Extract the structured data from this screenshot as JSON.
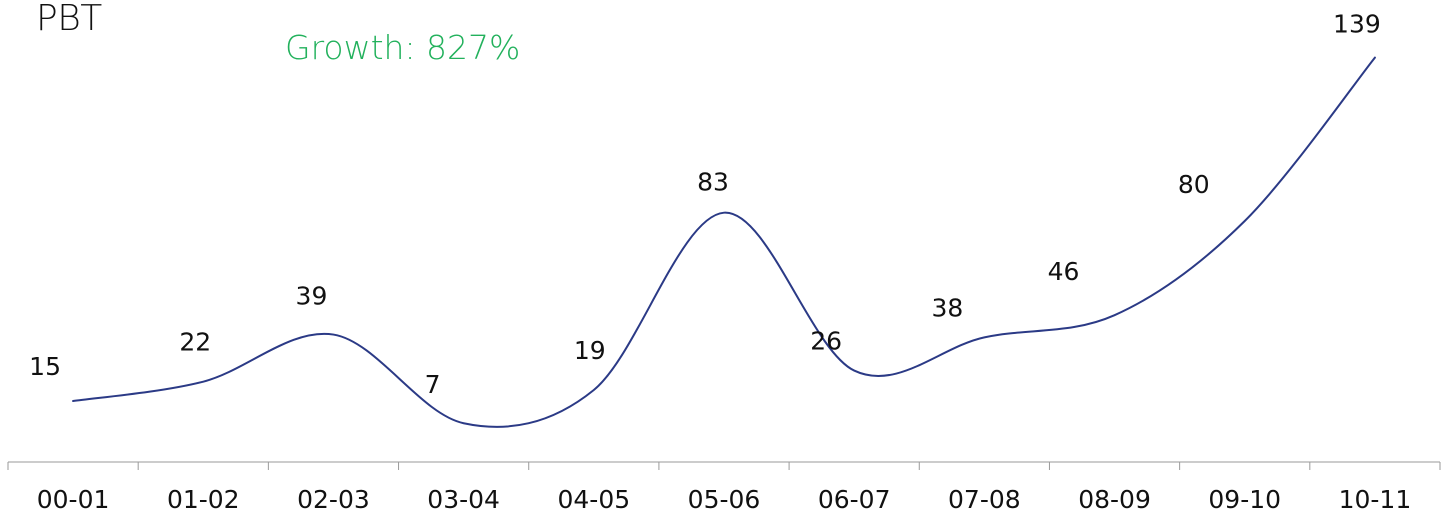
{
  "chart_data": {
    "type": "line",
    "title": "PBT",
    "subtitle": "Growth: 827%",
    "xlabel": "",
    "ylabel": "",
    "categories": [
      "00-01",
      "01-02",
      "02-03",
      "03-04",
      "04-05",
      "05-06",
      "06-07",
      "07-08",
      "08-09",
      "09-10",
      "10-11"
    ],
    "series": [
      {
        "values": [
          15,
          22,
          39,
          7,
          19,
          83,
          26,
          38,
          46,
          80,
          139
        ]
      }
    ],
    "grid": false,
    "legend": "none",
    "smooth": true
  },
  "colors": {
    "line": "#2b3a86",
    "subtitle": "#22b15c",
    "text": "#111111",
    "axis": "#9a9a9a"
  }
}
